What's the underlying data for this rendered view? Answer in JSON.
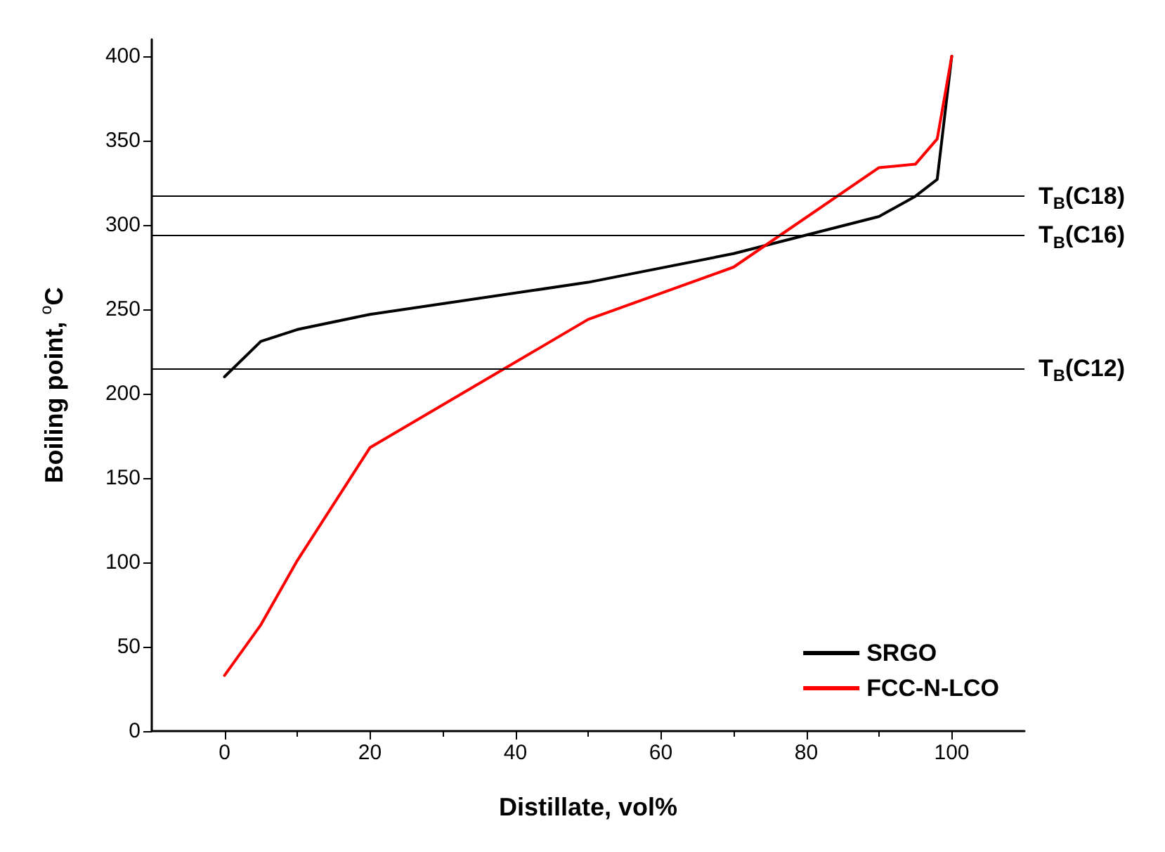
{
  "chart_data": {
    "type": "line",
    "xlabel": "Distillate, vol%",
    "ylabel": "Boiling point, $^{o}$C",
    "xlim": [
      -10,
      110
    ],
    "xticks": [
      0,
      20,
      40,
      60,
      80,
      100
    ],
    "ylim": [
      0,
      410
    ],
    "yticks": [
      0,
      50,
      100,
      150,
      200,
      250,
      300,
      350,
      400
    ],
    "grid": false,
    "legend": "bottom right",
    "marker": "none",
    "line_style": "solid",
    "series": [
      {
        "name": "SRGO",
        "color": "#000000",
        "x": [
          0,
          5,
          10,
          20,
          50,
          70,
          90,
          95,
          98,
          100
        ],
        "values": [
          210,
          231,
          238,
          247,
          266,
          283,
          305,
          317,
          327,
          400
        ]
      },
      {
        "name": "FCC-N-LCO",
        "color": "#ff0000",
        "x": [
          0,
          5,
          10,
          20,
          50,
          70,
          90,
          95,
          98,
          100
        ],
        "values": [
          33,
          63,
          101,
          168,
          244,
          275,
          334,
          336,
          351,
          400
        ]
      }
    ],
    "ref_lines": [
      {
        "axis": "y",
        "value": 317,
        "label": "T$_{B}$(C18)",
        "color": "#000000"
      },
      {
        "axis": "y",
        "value": 294,
        "label": "T$_{B}$(C16)",
        "color": "#000000"
      },
      {
        "axis": "y",
        "value": 215,
        "label": "T$_{B}$(C12)",
        "color": "#000000"
      }
    ]
  }
}
